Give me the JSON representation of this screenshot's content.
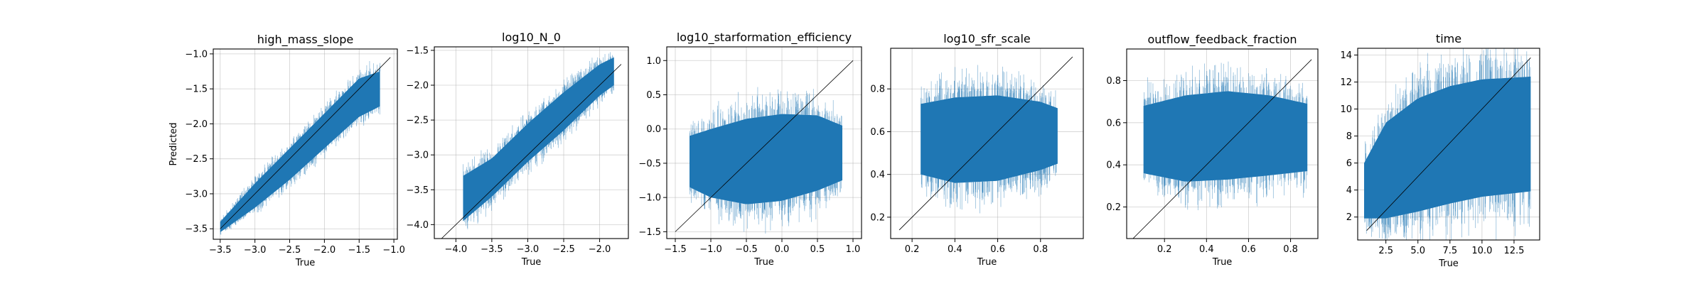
{
  "figure": {
    "panel_color": "#1f77b4",
    "diag_color": "#000000",
    "grid_color": "#b0b0b0"
  },
  "chart_data": [
    {
      "type": "scatter",
      "title": "high_mass_slope",
      "xlabel": "True",
      "ylabel": "Predicted",
      "xlim": [
        -3.6,
        -0.95
      ],
      "ylim": [
        -3.65,
        -0.93
      ],
      "xticks": [
        -3.5,
        -3.0,
        -2.5,
        -2.0,
        -1.5,
        -1.0
      ],
      "xtick_labels": [
        "−3.5",
        "−3.0",
        "−2.5",
        "−2.0",
        "−1.5",
        "−1.0"
      ],
      "yticks": [
        -3.5,
        -3.0,
        -2.5,
        -2.0,
        -1.5,
        -1.0
      ],
      "ytick_labels": [
        "−3.5",
        "−3.0",
        "−2.5",
        "−2.0",
        "−1.5",
        "−1.0"
      ],
      "grid": true,
      "identity_line": [
        -3.5,
        -1.05
      ],
      "series": [
        {
          "x_range": [
            -3.5,
            -1.2
          ],
          "band_lower": [
            [
              -3.5,
              -3.55
            ],
            [
              -3.0,
              -3.2
            ],
            [
              -2.5,
              -2.8
            ],
            [
              -2.0,
              -2.35
            ],
            [
              -1.5,
              -1.9
            ],
            [
              -1.2,
              -1.75
            ]
          ],
          "band_upper": [
            [
              -3.5,
              -3.4
            ],
            [
              -3.0,
              -2.85
            ],
            [
              -2.5,
              -2.35
            ],
            [
              -2.0,
              -1.85
            ],
            [
              -1.5,
              -1.35
            ],
            [
              -1.2,
              -1.25
            ]
          ]
        }
      ]
    },
    {
      "type": "scatter",
      "title": "log10_N_0",
      "xlabel": "True",
      "ylabel": "",
      "xlim": [
        -4.3,
        -1.6
      ],
      "ylim": [
        -4.2,
        -1.45
      ],
      "xticks": [
        -4.0,
        -3.5,
        -3.0,
        -2.5,
        -2.0
      ],
      "xtick_labels": [
        "−4.0",
        "−3.5",
        "−3.0",
        "−2.5",
        "−2.0"
      ],
      "yticks": [
        -4.0,
        -3.5,
        -3.0,
        -2.5,
        -2.0,
        -1.5
      ],
      "ytick_labels": [
        "−4.0",
        "−3.5",
        "−3.0",
        "−2.5",
        "−2.0",
        "−1.5"
      ],
      "grid": true,
      "identity_line": [
        -4.2,
        -1.7
      ],
      "series": [
        {
          "x_range": [
            -3.9,
            -1.8
          ],
          "band_lower": [
            [
              -3.9,
              -3.95
            ],
            [
              -3.5,
              -3.6
            ],
            [
              -3.0,
              -3.1
            ],
            [
              -2.5,
              -2.65
            ],
            [
              -2.0,
              -2.15
            ],
            [
              -1.8,
              -2.0
            ]
          ],
          "band_upper": [
            [
              -3.9,
              -3.3
            ],
            [
              -3.5,
              -3.05
            ],
            [
              -3.0,
              -2.55
            ],
            [
              -2.5,
              -2.1
            ],
            [
              -2.0,
              -1.7
            ],
            [
              -1.8,
              -1.6
            ]
          ]
        }
      ]
    },
    {
      "type": "scatter",
      "title": "log10_starformation_efficiency",
      "xlabel": "True",
      "ylabel": "",
      "xlim": [
        -1.62,
        1.12
      ],
      "ylim": [
        -1.6,
        1.2
      ],
      "xticks": [
        -1.5,
        -1.0,
        -0.5,
        0.0,
        0.5,
        1.0
      ],
      "xtick_labels": [
        "−1.5",
        "−1.0",
        "−0.5",
        "0.0",
        "0.5",
        "1.0"
      ],
      "yticks": [
        -1.5,
        -1.0,
        -0.5,
        0.0,
        0.5,
        1.0
      ],
      "ytick_labels": [
        "−1.5",
        "−1.0",
        "−0.5",
        "0.0",
        "0.5",
        "1.0"
      ],
      "grid": true,
      "identity_line": [
        -1.5,
        1.0
      ],
      "series": [
        {
          "x_range": [
            -1.3,
            0.85
          ],
          "band_lower": [
            [
              -1.3,
              -0.85
            ],
            [
              -1.0,
              -1.0
            ],
            [
              -0.5,
              -1.1
            ],
            [
              0.0,
              -1.05
            ],
            [
              0.5,
              -0.9
            ],
            [
              0.85,
              -0.75
            ]
          ],
          "band_upper": [
            [
              -1.3,
              -0.1
            ],
            [
              -1.0,
              0.0
            ],
            [
              -0.5,
              0.15
            ],
            [
              0.0,
              0.22
            ],
            [
              0.5,
              0.2
            ],
            [
              0.85,
              0.05
            ]
          ]
        }
      ]
    },
    {
      "type": "scatter",
      "title": "log10_sfr_scale",
      "xlabel": "True",
      "ylabel": "",
      "xlim": [
        0.1,
        1.0
      ],
      "ylim": [
        0.1,
        0.99
      ],
      "xticks": [
        0.2,
        0.4,
        0.6,
        0.8
      ],
      "xtick_labels": [
        "0.2",
        "0.4",
        "0.6",
        "0.8"
      ],
      "yticks": [
        0.2,
        0.4,
        0.6,
        0.8
      ],
      "ytick_labels": [
        "0.2",
        "0.4",
        "0.6",
        "0.8"
      ],
      "grid": true,
      "identity_line": [
        0.14,
        0.95
      ],
      "series": [
        {
          "x_range": [
            0.24,
            0.88
          ],
          "band_lower": [
            [
              0.24,
              0.4
            ],
            [
              0.4,
              0.36
            ],
            [
              0.6,
              0.37
            ],
            [
              0.8,
              0.42
            ],
            [
              0.88,
              0.45
            ]
          ],
          "band_upper": [
            [
              0.24,
              0.73
            ],
            [
              0.4,
              0.76
            ],
            [
              0.6,
              0.77
            ],
            [
              0.8,
              0.74
            ],
            [
              0.88,
              0.71
            ]
          ]
        }
      ]
    },
    {
      "type": "scatter",
      "title": "outflow_feedback_fraction",
      "xlabel": "True",
      "ylabel": "",
      "xlim": [
        0.02,
        0.93
      ],
      "ylim": [
        0.05,
        0.95
      ],
      "xticks": [
        0.2,
        0.4,
        0.6,
        0.8
      ],
      "xtick_labels": [
        "0.2",
        "0.4",
        "0.6",
        "0.8"
      ],
      "yticks": [
        0.2,
        0.4,
        0.6,
        0.8
      ],
      "ytick_labels": [
        "0.2",
        "0.4",
        "0.6",
        "0.8"
      ],
      "grid": true,
      "identity_line": [
        0.05,
        0.9
      ],
      "series": [
        {
          "x_range": [
            0.1,
            0.88
          ],
          "band_lower": [
            [
              0.1,
              0.36
            ],
            [
              0.3,
              0.32
            ],
            [
              0.5,
              0.33
            ],
            [
              0.7,
              0.35
            ],
            [
              0.88,
              0.37
            ]
          ],
          "band_upper": [
            [
              0.1,
              0.68
            ],
            [
              0.3,
              0.73
            ],
            [
              0.5,
              0.75
            ],
            [
              0.7,
              0.73
            ],
            [
              0.88,
              0.69
            ]
          ]
        }
      ]
    },
    {
      "type": "scatter",
      "title": "time",
      "xlabel": "True",
      "ylabel": "",
      "xlim": [
        0.3,
        14.5
      ],
      "ylim": [
        0.3,
        14.5
      ],
      "xticks": [
        2.5,
        5.0,
        7.5,
        10.0,
        12.5
      ],
      "xtick_labels": [
        "2.5",
        "5.0",
        "7.5",
        "10.0",
        "12.5"
      ],
      "yticks": [
        2,
        4,
        6,
        8,
        10,
        12,
        14
      ],
      "ytick_labels": [
        "2",
        "4",
        "6",
        "8",
        "10",
        "12",
        "14"
      ],
      "grid": true,
      "identity_line": [
        1.0,
        13.8
      ],
      "series": [
        {
          "x_range": [
            0.8,
            13.8
          ],
          "band_lower": [
            [
              0.8,
              1.9
            ],
            [
              2.5,
              1.9
            ],
            [
              5.0,
              2.4
            ],
            [
              7.5,
              3.0
            ],
            [
              10.0,
              3.5
            ],
            [
              13.8,
              3.9
            ]
          ],
          "band_upper": [
            [
              0.8,
              6.0
            ],
            [
              2.5,
              9.0
            ],
            [
              5.0,
              10.8
            ],
            [
              7.5,
              11.7
            ],
            [
              10.0,
              12.2
            ],
            [
              13.8,
              12.4
            ]
          ]
        }
      ]
    }
  ]
}
